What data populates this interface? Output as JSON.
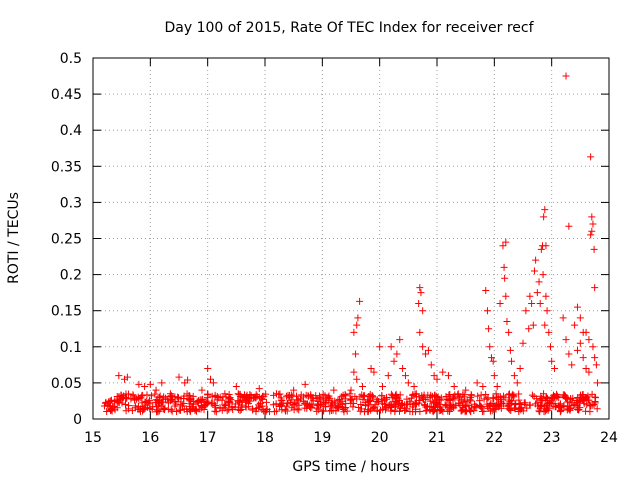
{
  "chart_data": {
    "type": "scatter",
    "title": "Day 100 of 2015, Rate Of TEC Index for receiver recf",
    "xlabel": "GPS time / hours",
    "ylabel": "ROTI / TECUs",
    "xlim": [
      15,
      24
    ],
    "ylim": [
      0,
      0.5
    ],
    "xticks": [
      15,
      16,
      17,
      18,
      19,
      20,
      21,
      22,
      23,
      24
    ],
    "xtick_labels": [
      "15",
      "16",
      "17",
      "18",
      "19",
      "20",
      "21",
      "22",
      "23",
      "24"
    ],
    "yticks": [
      0,
      0.05,
      0.1,
      0.15,
      0.2,
      0.25,
      0.3,
      0.35,
      0.4,
      0.45,
      0.5
    ],
    "ytick_labels": [
      "0",
      "0.05",
      "0.1",
      "0.15",
      "0.2",
      "0.25",
      "0.3",
      "0.35",
      "0.4",
      "0.45",
      "0.5"
    ],
    "grid": true,
    "marker": "+",
    "series": [
      {
        "name": "ROTI",
        "color": "#ff0000",
        "baseline_band": {
          "x_range": [
            15.2,
            23.8
          ],
          "y_range": [
            0.01,
            0.035
          ]
        },
        "points": [
          [
            15.2,
            0.018
          ],
          [
            15.3,
            0.025
          ],
          [
            15.45,
            0.06
          ],
          [
            15.55,
            0.055
          ],
          [
            15.6,
            0.058
          ],
          [
            15.8,
            0.048
          ],
          [
            15.9,
            0.045
          ],
          [
            16.0,
            0.048
          ],
          [
            16.1,
            0.04
          ],
          [
            16.2,
            0.05
          ],
          [
            16.35,
            0.035
          ],
          [
            16.5,
            0.058
          ],
          [
            16.6,
            0.05
          ],
          [
            16.65,
            0.054
          ],
          [
            16.9,
            0.04
          ],
          [
            17.0,
            0.07
          ],
          [
            17.05,
            0.055
          ],
          [
            17.1,
            0.05
          ],
          [
            17.3,
            0.035
          ],
          [
            17.5,
            0.045
          ],
          [
            17.8,
            0.03
          ],
          [
            17.9,
            0.042
          ],
          [
            18.2,
            0.035
          ],
          [
            18.5,
            0.04
          ],
          [
            18.7,
            0.048
          ],
          [
            18.95,
            0.03
          ],
          [
            19.2,
            0.04
          ],
          [
            19.5,
            0.04
          ],
          [
            19.55,
            0.12
          ],
          [
            19.6,
            0.13
          ],
          [
            19.65,
            0.163
          ],
          [
            19.62,
            0.14
          ],
          [
            19.58,
            0.09
          ],
          [
            19.55,
            0.065
          ],
          [
            19.6,
            0.055
          ],
          [
            19.7,
            0.045
          ],
          [
            19.85,
            0.07
          ],
          [
            19.9,
            0.065
          ],
          [
            20.0,
            0.1
          ],
          [
            20.05,
            0.045
          ],
          [
            20.15,
            0.06
          ],
          [
            20.2,
            0.1
          ],
          [
            20.25,
            0.08
          ],
          [
            20.3,
            0.09
          ],
          [
            20.35,
            0.11
          ],
          [
            20.4,
            0.07
          ],
          [
            20.45,
            0.06
          ],
          [
            20.5,
            0.05
          ],
          [
            20.6,
            0.045
          ],
          [
            20.7,
            0.182
          ],
          [
            20.72,
            0.175
          ],
          [
            20.68,
            0.16
          ],
          [
            20.75,
            0.15
          ],
          [
            20.7,
            0.12
          ],
          [
            20.75,
            0.1
          ],
          [
            20.8,
            0.09
          ],
          [
            20.85,
            0.095
          ],
          [
            20.9,
            0.075
          ],
          [
            20.95,
            0.06
          ],
          [
            21.0,
            0.055
          ],
          [
            21.1,
            0.065
          ],
          [
            21.2,
            0.06
          ],
          [
            21.3,
            0.045
          ],
          [
            21.5,
            0.04
          ],
          [
            21.7,
            0.05
          ],
          [
            21.8,
            0.045
          ],
          [
            21.85,
            0.178
          ],
          [
            21.88,
            0.15
          ],
          [
            21.9,
            0.125
          ],
          [
            21.92,
            0.1
          ],
          [
            21.95,
            0.085
          ],
          [
            21.98,
            0.08
          ],
          [
            22.0,
            0.06
          ],
          [
            22.05,
            0.045
          ],
          [
            22.1,
            0.16
          ],
          [
            22.15,
            0.24
          ],
          [
            22.17,
            0.21
          ],
          [
            22.2,
            0.245
          ],
          [
            22.18,
            0.195
          ],
          [
            22.2,
            0.17
          ],
          [
            22.22,
            0.135
          ],
          [
            22.25,
            0.12
          ],
          [
            22.28,
            0.095
          ],
          [
            22.3,
            0.08
          ],
          [
            22.35,
            0.06
          ],
          [
            22.4,
            0.05
          ],
          [
            22.45,
            0.07
          ],
          [
            22.5,
            0.105
          ],
          [
            22.55,
            0.15
          ],
          [
            22.6,
            0.125
          ],
          [
            22.62,
            0.17
          ],
          [
            22.65,
            0.16
          ],
          [
            22.68,
            0.13
          ],
          [
            22.7,
            0.205
          ],
          [
            22.72,
            0.22
          ],
          [
            22.75,
            0.175
          ],
          [
            22.78,
            0.19
          ],
          [
            22.8,
            0.16
          ],
          [
            22.82,
            0.235
          ],
          [
            22.84,
            0.24
          ],
          [
            22.86,
            0.28
          ],
          [
            22.88,
            0.29
          ],
          [
            22.9,
            0.24
          ],
          [
            22.85,
            0.2
          ],
          [
            22.9,
            0.17
          ],
          [
            22.92,
            0.15
          ],
          [
            22.88,
            0.13
          ],
          [
            22.95,
            0.12
          ],
          [
            22.98,
            0.1
          ],
          [
            23.0,
            0.08
          ],
          [
            23.05,
            0.07
          ],
          [
            23.25,
            0.475
          ],
          [
            23.3,
            0.267
          ],
          [
            23.2,
            0.14
          ],
          [
            23.25,
            0.11
          ],
          [
            23.3,
            0.09
          ],
          [
            23.35,
            0.075
          ],
          [
            23.4,
            0.13
          ],
          [
            23.45,
            0.155
          ],
          [
            23.5,
            0.14
          ],
          [
            23.55,
            0.12
          ],
          [
            23.5,
            0.105
          ],
          [
            23.45,
            0.095
          ],
          [
            23.55,
            0.085
          ],
          [
            23.6,
            0.07
          ],
          [
            23.65,
            0.065
          ],
          [
            23.6,
            0.12
          ],
          [
            23.65,
            0.11
          ],
          [
            23.68,
            0.363
          ],
          [
            23.7,
            0.28
          ],
          [
            23.72,
            0.27
          ],
          [
            23.7,
            0.26
          ],
          [
            23.68,
            0.255
          ],
          [
            23.74,
            0.235
          ],
          [
            23.75,
            0.182
          ],
          [
            23.72,
            0.1
          ],
          [
            23.75,
            0.085
          ],
          [
            23.78,
            0.075
          ],
          [
            23.8,
            0.05
          ]
        ]
      }
    ]
  }
}
